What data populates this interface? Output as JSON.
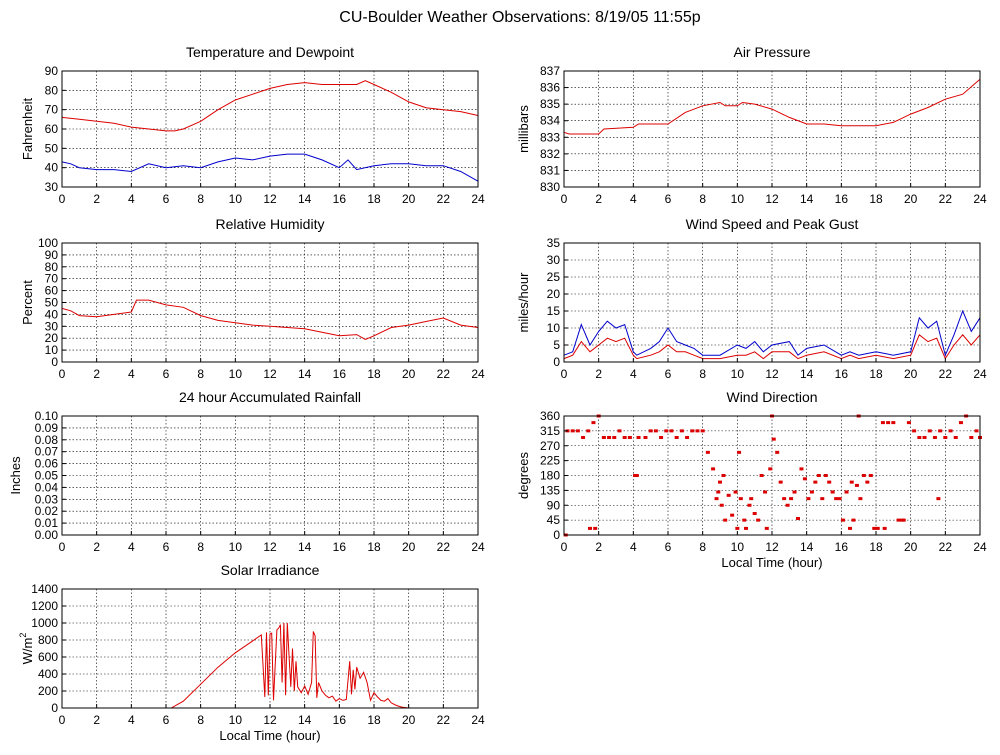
{
  "page_title": "CU-Boulder Weather Observations: 8/19/05 11:55p",
  "colors": {
    "series_red": "#dd0000",
    "series_blue": "#0000cc",
    "axis": "#000000"
  },
  "chart_data": [
    {
      "id": "temp",
      "type": "line",
      "title": "Temperature and Dewpoint",
      "xlabel": "",
      "ylabel": "Fahrenheit",
      "xlim": [
        0,
        24
      ],
      "ylim": [
        30,
        90
      ],
      "xticks": [
        0,
        2,
        4,
        6,
        8,
        10,
        12,
        14,
        16,
        18,
        20,
        22,
        24
      ],
      "yticks": [
        30,
        40,
        50,
        60,
        70,
        80,
        90
      ],
      "ytick_labels": [
        "30",
        "40",
        "50",
        "60",
        "70",
        "80",
        "90"
      ],
      "grid": true,
      "series": [
        {
          "color": "#dd0000",
          "x": [
            0,
            1,
            2,
            3,
            4,
            5,
            6,
            6.5,
            7,
            8,
            9,
            10,
            11,
            12,
            13,
            14,
            15,
            16,
            17,
            17.5,
            18,
            19,
            20,
            21,
            22,
            23,
            24
          ],
          "y": [
            66,
            65,
            64,
            63,
            61,
            60,
            59,
            59,
            60,
            64,
            70,
            75,
            78,
            81,
            83,
            84,
            83,
            83,
            83,
            85,
            83,
            79,
            74,
            71,
            70,
            69,
            67
          ]
        },
        {
          "color": "#0000cc",
          "x": [
            0,
            0.5,
            1,
            2,
            3,
            4,
            5,
            6,
            7,
            8,
            9,
            10,
            11,
            12,
            13,
            14,
            15,
            16,
            16.5,
            17,
            18,
            19,
            20,
            21,
            22,
            23,
            24
          ],
          "y": [
            43,
            42,
            40,
            39,
            39,
            38,
            42,
            40,
            41,
            40,
            43,
            45,
            44,
            46,
            47,
            47,
            44,
            40,
            44,
            39,
            41,
            42,
            42,
            41,
            41,
            38,
            33
          ]
        }
      ]
    },
    {
      "id": "pressure",
      "type": "line",
      "title": "Air Pressure",
      "xlabel": "",
      "ylabel": "millibars",
      "xlim": [
        0,
        24
      ],
      "ylim": [
        830,
        837
      ],
      "xticks": [
        0,
        2,
        4,
        6,
        8,
        10,
        12,
        14,
        16,
        18,
        20,
        22,
        24
      ],
      "yticks": [
        830,
        831,
        832,
        833,
        834,
        835,
        836,
        837
      ],
      "ytick_labels": [
        "830",
        "831",
        "832",
        "833",
        "834",
        "835",
        "836",
        "837"
      ],
      "grid": true,
      "series": [
        {
          "color": "#dd0000",
          "x": [
            0,
            0.3,
            2,
            2.3,
            4,
            4.3,
            6,
            7,
            8,
            9,
            9.3,
            10,
            10.3,
            11,
            12,
            13,
            14,
            15,
            16,
            16.3,
            17,
            18,
            19,
            20,
            21,
            22,
            23,
            24
          ],
          "y": [
            833.3,
            833.2,
            833.2,
            833.5,
            833.6,
            833.8,
            833.8,
            834.5,
            834.9,
            835.1,
            834.9,
            834.9,
            835.1,
            835.0,
            834.7,
            834.2,
            833.8,
            833.8,
            833.7,
            833.7,
            833.7,
            833.7,
            833.9,
            834.4,
            834.8,
            835.3,
            835.6,
            836.5
          ]
        }
      ]
    },
    {
      "id": "humidity",
      "type": "line",
      "title": "Relative Humidity",
      "xlabel": "",
      "ylabel": "Percent",
      "xlim": [
        0,
        24
      ],
      "ylim": [
        0,
        100
      ],
      "xticks": [
        0,
        2,
        4,
        6,
        8,
        10,
        12,
        14,
        16,
        18,
        20,
        22,
        24
      ],
      "yticks": [
        0,
        10,
        20,
        30,
        40,
        50,
        60,
        70,
        80,
        90,
        100
      ],
      "ytick_labels": [
        "0",
        "10",
        "20",
        "30",
        "40",
        "50",
        "60",
        "70",
        "80",
        "90",
        "100"
      ],
      "grid": true,
      "series": [
        {
          "color": "#dd0000",
          "x": [
            0,
            0.5,
            1,
            2,
            3,
            4,
            4.3,
            5,
            6,
            7,
            8,
            9,
            10,
            11,
            12,
            13,
            14,
            15,
            16,
            17,
            17.5,
            18,
            19,
            20,
            21,
            22,
            23,
            24
          ],
          "y": [
            45,
            43,
            39,
            38,
            40,
            42,
            52,
            52,
            48,
            46,
            39,
            35,
            33,
            31,
            30,
            29,
            28,
            25,
            22,
            23,
            19,
            22,
            29,
            31,
            34,
            37,
            31,
            29
          ]
        }
      ]
    },
    {
      "id": "wind",
      "type": "line",
      "title": "Wind Speed and Peak Gust",
      "xlabel": "",
      "ylabel": "miles/hour",
      "xlim": [
        0,
        24
      ],
      "ylim": [
        0,
        35
      ],
      "xticks": [
        0,
        2,
        4,
        6,
        8,
        10,
        12,
        14,
        16,
        18,
        20,
        22,
        24
      ],
      "yticks": [
        0,
        5,
        10,
        15,
        20,
        25,
        30,
        35
      ],
      "ytick_labels": [
        "0",
        "5",
        "10",
        "15",
        "20",
        "25",
        "30",
        "35"
      ],
      "grid": true,
      "series": [
        {
          "color": "#0000cc",
          "x": [
            0,
            0.5,
            1,
            1.5,
            2,
            2.5,
            3,
            3.5,
            4,
            4.2,
            5,
            5.5,
            6,
            6.5,
            7,
            7.5,
            8,
            9,
            10,
            10.5,
            11,
            11.5,
            12,
            13,
            13.5,
            14,
            15,
            16,
            16.5,
            17,
            18,
            19,
            20,
            20.5,
            21,
            21.5,
            22,
            22.5,
            23,
            23.5,
            24
          ],
          "y": [
            2,
            3,
            11,
            5,
            9,
            12,
            10,
            11,
            3,
            2,
            4,
            6,
            10,
            6,
            5,
            4,
            2,
            2,
            5,
            4,
            6,
            3,
            5,
            6,
            2,
            4,
            5,
            2,
            3,
            2,
            3,
            2,
            3,
            13,
            10,
            12,
            2,
            8,
            15,
            9,
            13
          ]
        },
        {
          "color": "#dd0000",
          "x": [
            0,
            0.5,
            1,
            1.5,
            2,
            2.5,
            3,
            3.5,
            4,
            4.2,
            5,
            5.5,
            6,
            6.5,
            7,
            7.5,
            8,
            9,
            10,
            10.5,
            11,
            11.5,
            12,
            13,
            13.5,
            14,
            15,
            16,
            16.5,
            17,
            18,
            19,
            20,
            20.5,
            21,
            21.5,
            22,
            22.5,
            23,
            23.5,
            24
          ],
          "y": [
            1,
            2,
            6,
            3,
            5,
            7,
            6,
            7,
            2,
            1,
            2,
            3,
            5,
            3,
            3,
            2,
            1,
            1,
            2,
            2,
            3,
            1,
            3,
            3,
            1,
            2,
            3,
            1,
            2,
            1,
            2,
            1,
            2,
            8,
            6,
            7,
            1,
            5,
            8,
            5,
            8
          ]
        }
      ]
    },
    {
      "id": "rain",
      "type": "line",
      "title": "24 hour Accumulated Rainfall",
      "xlabel": "",
      "ylabel": "Inches",
      "xlim": [
        0,
        24
      ],
      "ylim": [
        0,
        0.1
      ],
      "xticks": [
        0,
        2,
        4,
        6,
        8,
        10,
        12,
        14,
        16,
        18,
        20,
        22,
        24
      ],
      "yticks": [
        0,
        0.01,
        0.02,
        0.03,
        0.04,
        0.05,
        0.06,
        0.07,
        0.08,
        0.09,
        0.1
      ],
      "ytick_labels": [
        "0.00",
        "0.01",
        "0.02",
        "0.03",
        "0.04",
        "0.05",
        "0.06",
        "0.07",
        "0.08",
        "0.09",
        "0.10"
      ],
      "grid": true,
      "series": [
        {
          "color": "#dd0000",
          "x": [
            0,
            24
          ],
          "y": [
            0,
            0
          ]
        }
      ]
    },
    {
      "id": "winddir",
      "type": "scatter",
      "title": "Wind Direction",
      "xlabel": "Local Time (hour)",
      "ylabel": "degrees",
      "xlim": [
        0,
        24
      ],
      "ylim": [
        0,
        360
      ],
      "xticks": [
        0,
        2,
        4,
        6,
        8,
        10,
        12,
        14,
        16,
        18,
        20,
        22,
        24
      ],
      "yticks": [
        0,
        45,
        90,
        135,
        180,
        225,
        270,
        315,
        360
      ],
      "ytick_labels": [
        "0",
        "45",
        "90",
        "135",
        "180",
        "225",
        "270",
        "315",
        "360"
      ],
      "grid": true,
      "series": [
        {
          "color": "#dd0000",
          "x": [
            0.2,
            0.5,
            0.8,
            1.1,
            1.4,
            1.7,
            2.0,
            2.3,
            2.6,
            2.9,
            3.2,
            3.5,
            3.8,
            4.1,
            4.3,
            4.7,
            5.0,
            5.3,
            5.6,
            5.9,
            6.2,
            6.5,
            6.8,
            7.1,
            7.4,
            7.7,
            8.0,
            8.3,
            8.6,
            8.8,
            8.9,
            9.0,
            9.1,
            9.2,
            9.3,
            9.5,
            9.7,
            9.9,
            10.0,
            10.1,
            10.2,
            10.4,
            10.5,
            10.7,
            10.8,
            11.0,
            11.2,
            11.4,
            11.6,
            11.7,
            11.9,
            12.0,
            12.1,
            12.3,
            12.5,
            12.7,
            12.9,
            13.1,
            13.3,
            13.5,
            13.7,
            13.9,
            14.1,
            14.3,
            14.5,
            14.7,
            14.9,
            15.1,
            15.3,
            15.5,
            15.7,
            15.9,
            16.1,
            16.3,
            16.5,
            16.7,
            16.9,
            17.1,
            17.3,
            17.5,
            17.7,
            17.9,
            18.1,
            18.4,
            18.7,
            19.0,
            19.3,
            19.6,
            19.9,
            20.2,
            20.5,
            20.8,
            21.1,
            21.4,
            21.7,
            22.0,
            22.3,
            22.6,
            22.9,
            23.2,
            23.5,
            23.8,
            24.0,
            1.5,
            1.8,
            4.2,
            0.1,
            18.5,
            19.5,
            21.6,
            16.6,
            17.0
          ],
          "y": [
            315,
            315,
            315,
            295,
            315,
            340,
            360,
            295,
            295,
            295,
            315,
            295,
            295,
            180,
            295,
            295,
            315,
            315,
            295,
            315,
            315,
            295,
            315,
            295,
            315,
            315,
            315,
            250,
            200,
            110,
            130,
            160,
            90,
            180,
            45,
            120,
            60,
            130,
            20,
            250,
            110,
            45,
            20,
            90,
            110,
            65,
            45,
            180,
            130,
            20,
            200,
            360,
            290,
            250,
            160,
            110,
            90,
            110,
            130,
            50,
            200,
            170,
            110,
            130,
            160,
            180,
            110,
            180,
            160,
            130,
            110,
            110,
            45,
            130,
            20,
            45,
            150,
            110,
            180,
            160,
            180,
            20,
            20,
            340,
            340,
            340,
            45,
            45,
            340,
            315,
            295,
            295,
            315,
            295,
            315,
            295,
            315,
            295,
            340,
            360,
            295,
            315,
            295,
            20,
            20,
            180,
            0,
            20,
            45,
            110,
            160,
            360
          ]
        }
      ]
    },
    {
      "id": "solar",
      "type": "line",
      "title": "Solar Irradiance",
      "xlabel": "Local Time (hour)",
      "ylabel_base": "W/m",
      "ylabel_sup": "2",
      "xlim": [
        0,
        24
      ],
      "ylim": [
        0,
        1400
      ],
      "xticks": [
        0,
        2,
        4,
        6,
        8,
        10,
        12,
        14,
        16,
        18,
        20,
        22,
        24
      ],
      "yticks": [
        0,
        200,
        400,
        600,
        800,
        1000,
        1200,
        1400
      ],
      "ytick_labels": [
        "0",
        "200",
        "400",
        "600",
        "800",
        "1000",
        "1200",
        "1400"
      ],
      "grid": true,
      "series": [
        {
          "color": "#dd0000",
          "x": [
            0,
            6.3,
            7,
            8,
            9,
            10,
            11,
            11.5,
            11.7,
            11.8,
            11.9,
            12.0,
            12.1,
            12.2,
            12.4,
            12.5,
            12.6,
            12.7,
            12.8,
            12.9,
            13.0,
            13.1,
            13.2,
            13.3,
            13.4,
            13.5,
            13.6,
            13.8,
            14.0,
            14.2,
            14.4,
            14.5,
            14.6,
            14.7,
            14.8,
            15.0,
            15.2,
            15.4,
            15.6,
            15.8,
            16.0,
            16.2,
            16.4,
            16.6,
            16.7,
            16.8,
            16.9,
            17.0,
            17.2,
            17.4,
            17.6,
            17.8,
            18.0,
            18.2,
            18.4,
            18.6,
            18.8,
            19.0,
            19.3,
            19.6,
            20,
            24
          ],
          "y": [
            0,
            0,
            80,
            280,
            480,
            650,
            790,
            860,
            130,
            890,
            150,
            870,
            880,
            90,
            920,
            940,
            980,
            300,
            1000,
            150,
            1000,
            600,
            250,
            700,
            200,
            550,
            250,
            180,
            260,
            160,
            300,
            900,
            850,
            120,
            300,
            200,
            150,
            120,
            140,
            80,
            110,
            90,
            100,
            550,
            160,
            450,
            220,
            480,
            350,
            420,
            300,
            90,
            180,
            130,
            90,
            80,
            110,
            60,
            30,
            10,
            0,
            0
          ]
        }
      ]
    }
  ]
}
